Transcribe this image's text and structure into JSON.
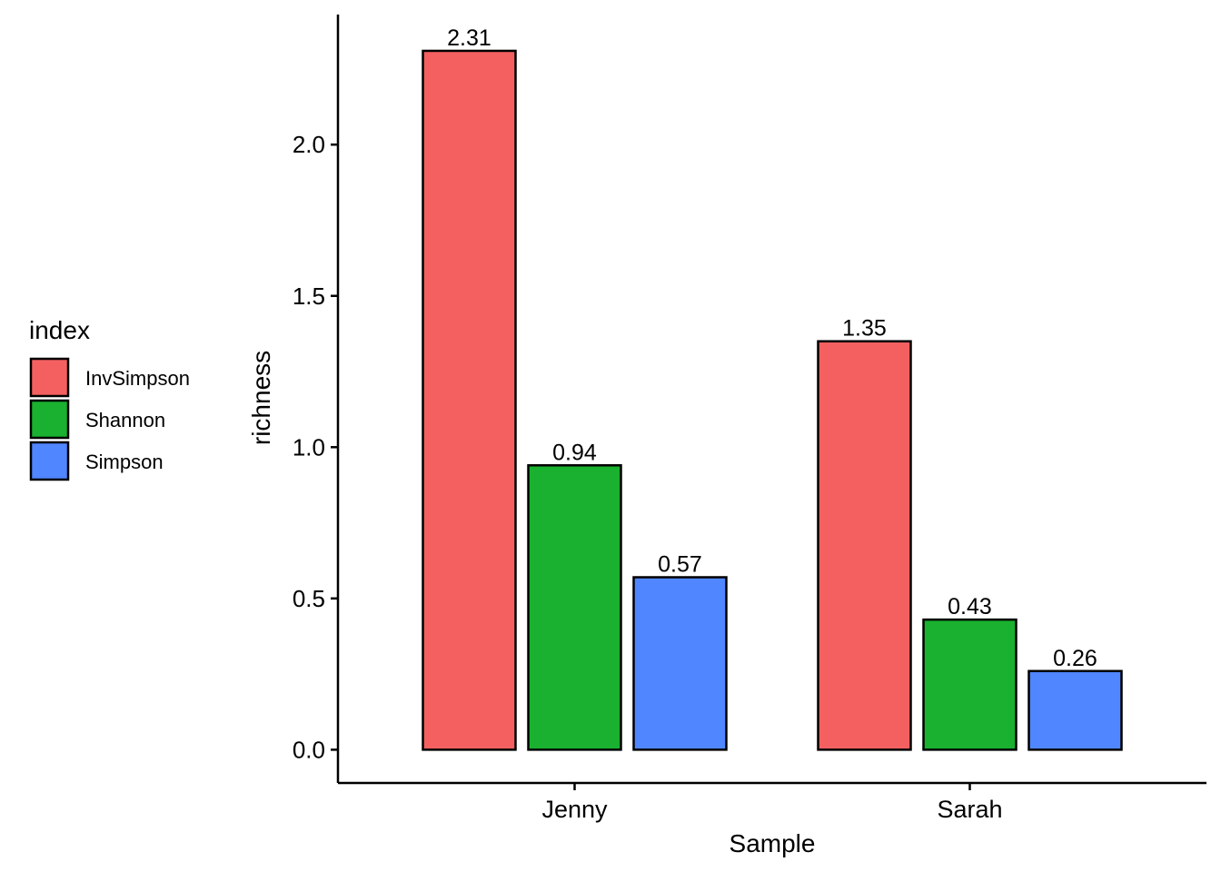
{
  "chart_data": {
    "type": "bar",
    "categories": [
      "Jenny",
      "Sarah"
    ],
    "series": [
      {
        "name": "InvSimpson",
        "values": [
          2.31,
          1.35
        ],
        "color": "#F46060"
      },
      {
        "name": "Shannon",
        "values": [
          0.94,
          0.43
        ],
        "color": "#19B12F"
      },
      {
        "name": "Simpson",
        "values": [
          0.57,
          0.26
        ],
        "color": "#5086FF"
      }
    ],
    "data_labels": [
      [
        "2.31",
        "1.35"
      ],
      [
        "0.94",
        "0.43"
      ],
      [
        "0.57",
        "0.26"
      ]
    ],
    "xlabel": "Sample",
    "ylabel": "richness",
    "ylim": [
      -0.11,
      2.43
    ],
    "yticks": [
      0.0,
      0.5,
      1.0,
      1.5,
      2.0
    ],
    "ytick_labels": [
      "0.0",
      "0.5",
      "1.0",
      "1.5",
      "2.0"
    ],
    "legend": {
      "title": "index",
      "placement": "left"
    },
    "grid": false
  }
}
